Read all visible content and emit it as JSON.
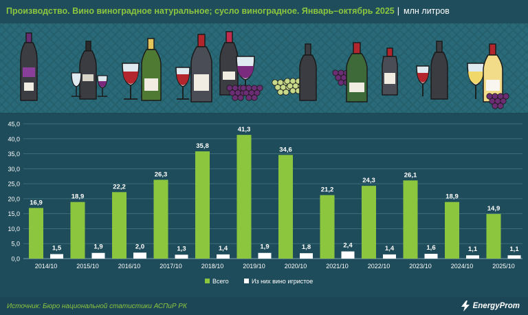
{
  "header": {
    "title": "Производство. Вино виноградное натуральное; сусло виноградное. Январь–октябрь 2025",
    "separator": "|",
    "unit": "млн литров"
  },
  "banner": {
    "icons": [
      "wine-bottle-icon",
      "wine-glass-icon",
      "grapes-icon"
    ]
  },
  "chart_data": {
    "type": "bar",
    "categories": [
      "2014/10",
      "2015/10",
      "2016/10",
      "2017/10",
      "2018/10",
      "2019/10",
      "2020/10",
      "2021/10",
      "2022/10",
      "2023/10",
      "2024/10",
      "2025/10"
    ],
    "series": [
      {
        "name": "Всего",
        "color": "#8cc63f",
        "values": [
          16.9,
          18.9,
          22.2,
          26.3,
          35.8,
          41.3,
          34.6,
          21.2,
          24.3,
          26.1,
          18.9,
          14.9
        ]
      },
      {
        "name": "Из них вино игристое",
        "color": "#ffffff",
        "values": [
          1.5,
          1.9,
          2.0,
          1.3,
          1.4,
          1.9,
          1.8,
          2.4,
          1.4,
          1.6,
          1.1,
          1.1
        ]
      }
    ],
    "ylim": [
      0,
      45
    ],
    "yticks": [
      "0,0",
      "5,0",
      "10,0",
      "15,0",
      "20,0",
      "25,0",
      "30,0",
      "35,0",
      "40,0",
      "45,0"
    ],
    "grid": true,
    "legend": "bottom",
    "data_labels": true
  },
  "footer": {
    "source": "Источник: Бюро национальной статистики АСПиР РК",
    "logo": "EnergyProm"
  }
}
